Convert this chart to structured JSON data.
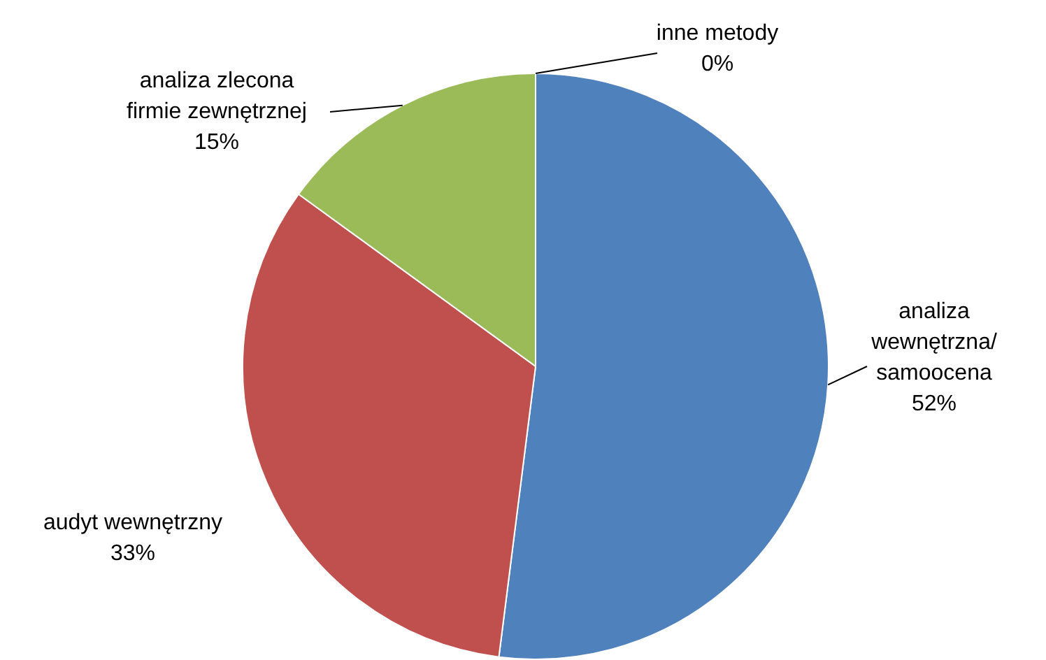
{
  "chart_data": {
    "type": "pie",
    "categories": [
      "analiza\nwewnętrzna/\nsamoocena",
      "audyt wewnętrzny",
      "analiza zlecona\nfirmie zewnętrznej",
      "inne metody"
    ],
    "values": [
      52,
      33,
      15,
      0
    ],
    "colors": [
      "#4f81bd",
      "#c0504d",
      "#9bbb59",
      "#8064a2"
    ],
    "value_labels": [
      "52%",
      "33%",
      "15%",
      "0%"
    ],
    "legend": false
  }
}
